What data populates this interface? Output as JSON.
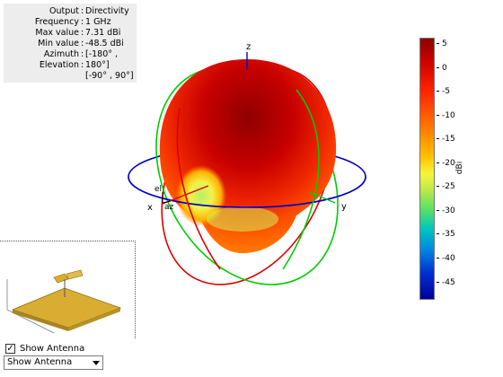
{
  "info_panel": {
    "rows": [
      {
        "key": "Output",
        "value": "Directivity"
      },
      {
        "key": "Frequency",
        "value": "1 GHz"
      },
      {
        "key": "Max value",
        "value": "7.31 dBi"
      },
      {
        "key": "Min value",
        "value": "-48.5 dBi"
      },
      {
        "key": "Azimuth",
        "value": "[-180° ,"
      },
      {
        "key": "Elevation",
        "value": "180°]"
      },
      {
        "key": "",
        "value": "[-90° , 90°]"
      }
    ]
  },
  "axes": {
    "x": "x",
    "y": "y",
    "z": "z",
    "el": "el",
    "az": "az"
  },
  "colorbar": {
    "unit": "dBi",
    "ticks": [
      "5",
      "0",
      "-5",
      "-10",
      "-15",
      "-20",
      "-25",
      "-30",
      "-35",
      "-40",
      "-45"
    ]
  },
  "colors": {
    "cut_azimuth": "#0000cc",
    "cut_elevation_1": "#cc0000",
    "cut_elevation_2": "#00cc00",
    "antenna": "#d4a82c"
  },
  "controls": {
    "show_antenna_label": "Show Antenna",
    "show_antenna_checked": true,
    "dropdown_value": "Show Antenna"
  }
}
